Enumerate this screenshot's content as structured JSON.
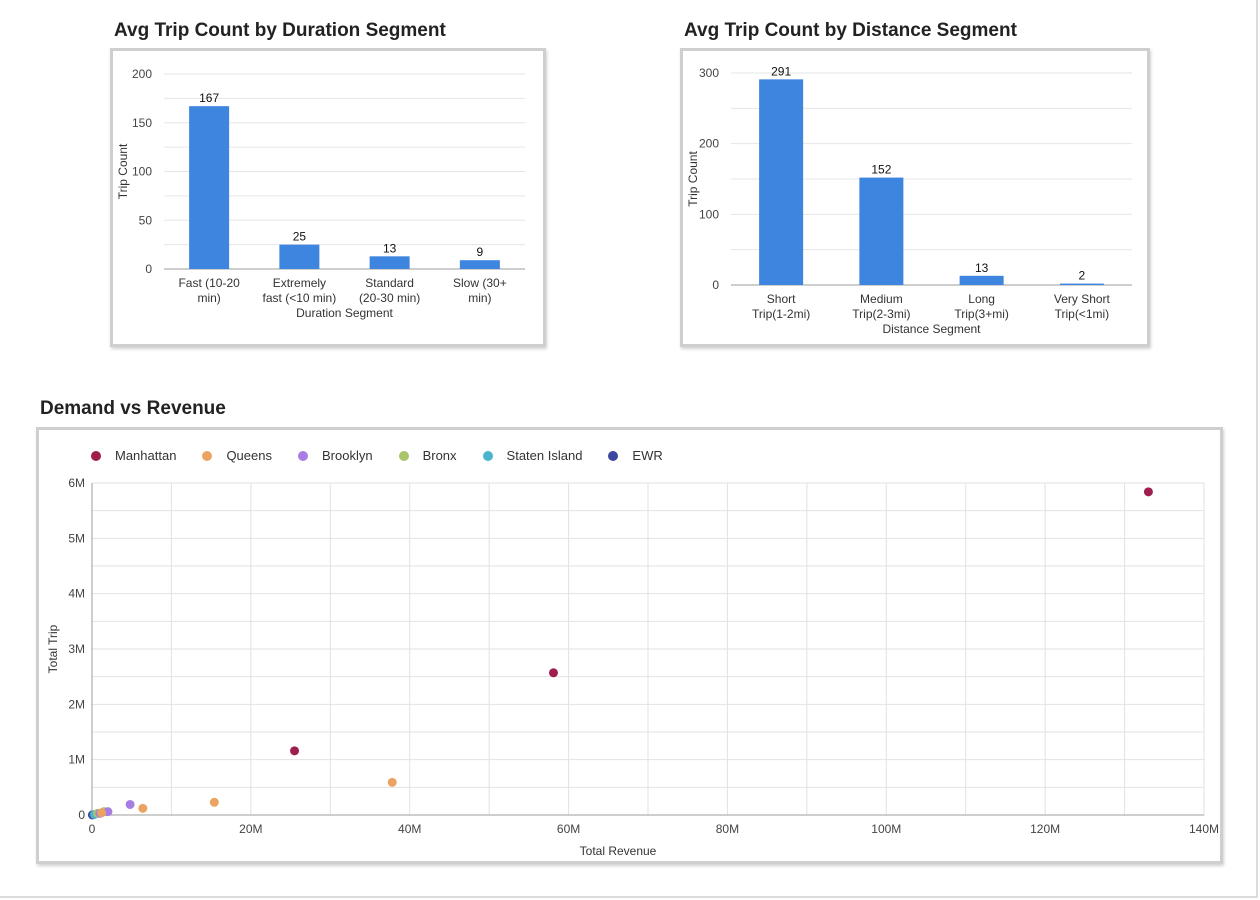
{
  "chart_data": [
    {
      "type": "bar",
      "title": "Avg Trip Count by Duration Segment",
      "xlabel": "Duration Segment",
      "ylabel": "Trip Count",
      "categories": [
        "Fast (10-20 min)",
        "Extremely fast (<10 min)",
        "Standard (20-30 min)",
        "Slow (30+ min)"
      ],
      "category_lines": [
        [
          "Fast (10-20",
          "min)"
        ],
        [
          "Extremely",
          "fast (<10 min)"
        ],
        [
          "Standard",
          "(20-30 min)"
        ],
        [
          "Slow (30+",
          "min)"
        ]
      ],
      "values": [
        167,
        25,
        13,
        9
      ],
      "ylim": [
        0,
        200
      ],
      "yticks": [
        0,
        50,
        100,
        150,
        200
      ],
      "ytick_labels": [
        "0",
        "50",
        "100",
        "150",
        "200"
      ],
      "color": "#3d85de",
      "grid": true,
      "legend": "none"
    },
    {
      "type": "bar",
      "title": "Avg Trip Count by Distance Segment",
      "xlabel": "Distance Segment",
      "ylabel": "Trip Count",
      "categories": [
        "Short Trip(1-2mi)",
        "Medium Trip(2-3mi)",
        "Long Trip(3+mi)",
        "Very Short Trip(<1mi)"
      ],
      "category_lines": [
        [
          "Short",
          "Trip(1-2mi)"
        ],
        [
          "Medium",
          "Trip(2-3mi)"
        ],
        [
          "Long",
          "Trip(3+mi)"
        ],
        [
          "Very Short",
          "Trip(<1mi)"
        ]
      ],
      "values": [
        291,
        152,
        13,
        2
      ],
      "ylim": [
        0,
        300
      ],
      "yticks": [
        0,
        100,
        200,
        300
      ],
      "ytick_labels": [
        "0",
        "100",
        "200",
        "300"
      ],
      "color": "#3d85de",
      "grid": true,
      "legend": "none"
    },
    {
      "type": "scatter",
      "title": "Demand vs Revenue",
      "xlabel": "Total Revenue",
      "ylabel": "Total Trip",
      "xlim": [
        0,
        140000000
      ],
      "ylim": [
        0,
        6000000
      ],
      "xticks": [
        0,
        20000000,
        40000000,
        60000000,
        80000000,
        100000000,
        120000000,
        140000000
      ],
      "xtick_labels": [
        "0",
        "20M",
        "40M",
        "60M",
        "80M",
        "100M",
        "120M",
        "140M"
      ],
      "yticks": [
        0,
        1000000,
        2000000,
        3000000,
        4000000,
        5000000,
        6000000
      ],
      "ytick_labels": [
        "0",
        "1M",
        "2M",
        "3M",
        "4M",
        "5M",
        "6M"
      ],
      "grid": true,
      "legend": "top-left",
      "series": [
        {
          "name": "Manhattan",
          "color": "#9e1f4f",
          "points": [
            [
              133000000,
              5840000
            ],
            [
              58100000,
              2570000
            ],
            [
              25500000,
              1160000
            ]
          ]
        },
        {
          "name": "Queens",
          "color": "#eba362",
          "points": [
            [
              37800000,
              590000
            ],
            [
              15400000,
              230000
            ],
            [
              6400000,
              120000
            ],
            [
              1200000,
              40000
            ]
          ]
        },
        {
          "name": "Brooklyn",
          "color": "#a87de3",
          "points": [
            [
              4800000,
              190000
            ],
            [
              2000000,
              60000
            ],
            [
              1000000,
              30000
            ]
          ]
        },
        {
          "name": "Bronx",
          "color": "#a9c46b",
          "points": [
            [
              1500000,
              60000
            ],
            [
              700000,
              30000
            ]
          ]
        },
        {
          "name": "Staten Island",
          "color": "#4ab4cc",
          "points": [
            [
              300000,
              10000
            ]
          ]
        },
        {
          "name": "EWR",
          "color": "#3c47a0",
          "points": [
            [
              50000,
              2000
            ]
          ]
        }
      ]
    }
  ]
}
